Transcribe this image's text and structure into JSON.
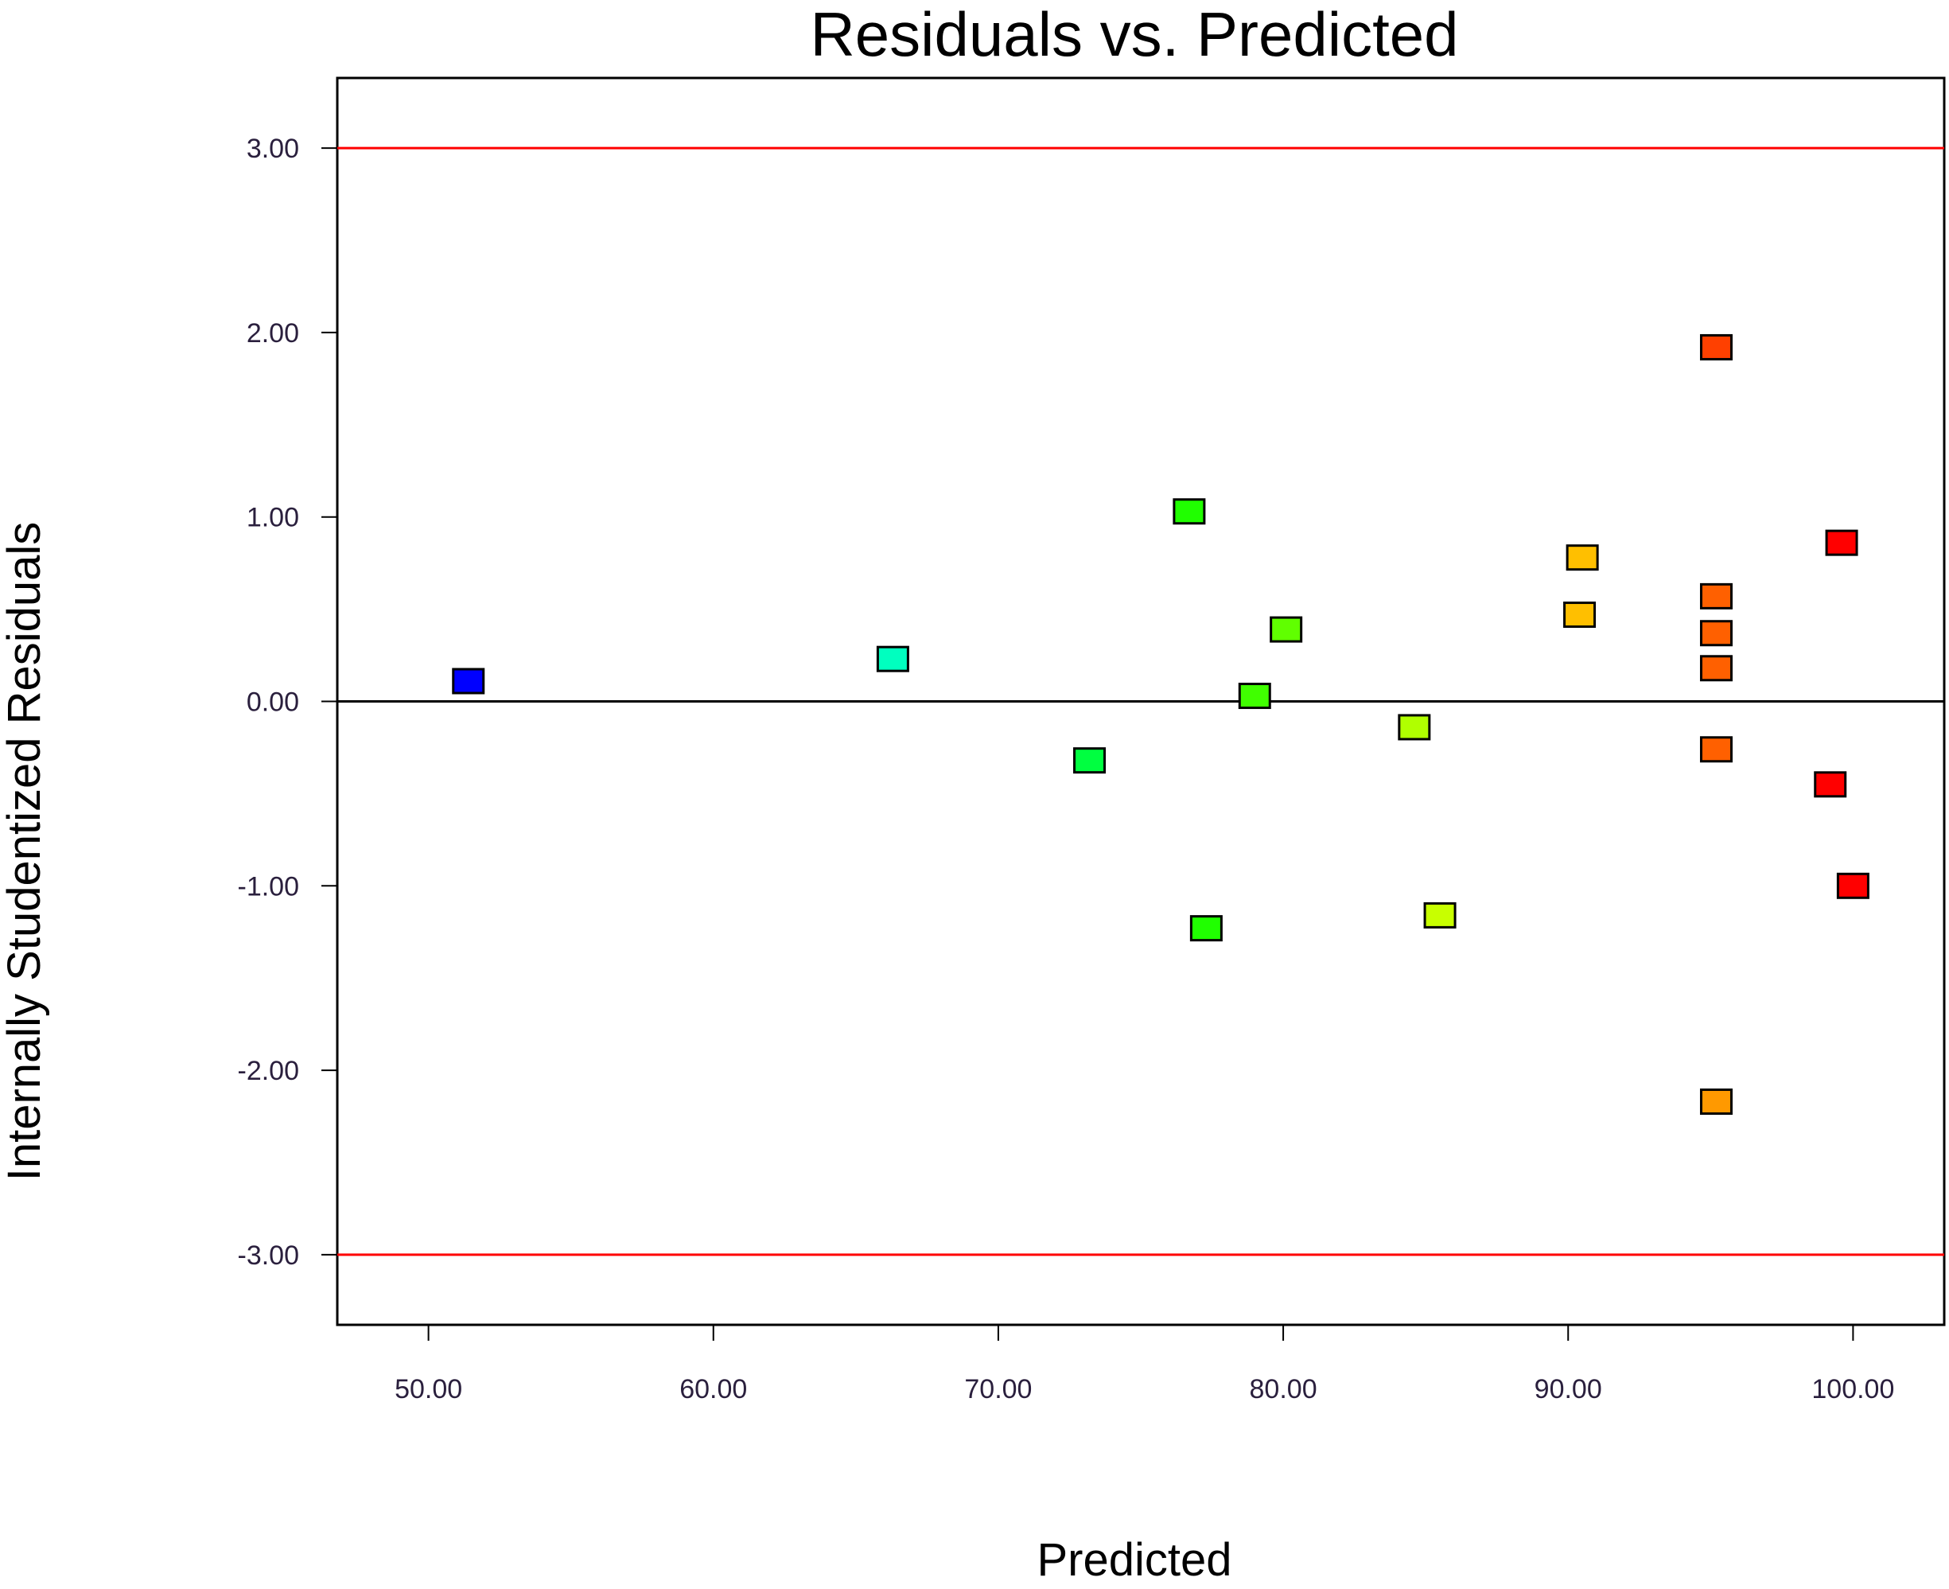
{
  "chart_data": {
    "type": "scatter",
    "title": "Residuals vs. Predicted",
    "xlabel": "Predicted",
    "ylabel": "Internally Studentized Residuals",
    "xlim": [
      46.8,
      103.2
    ],
    "ylim": [
      -3.38,
      3.38
    ],
    "x_ticks": [
      50,
      60,
      70,
      80,
      90,
      100
    ],
    "x_tick_labels": [
      "50.00",
      "60.00",
      "70.00",
      "80.00",
      "90.00",
      "100.00"
    ],
    "y_ticks": [
      3,
      2,
      1,
      0,
      -1,
      -2,
      -3
    ],
    "y_tick_labels": [
      "3.00",
      "2.00",
      "1.00",
      "0.00",
      "-1.00",
      "-2.00",
      "-3.00"
    ],
    "reference_lines": [
      {
        "y": 3,
        "color": "#ff0000"
      },
      {
        "y": 0,
        "color": "#000000"
      },
      {
        "y": -3,
        "color": "#ff0000"
      }
    ],
    "grid": false,
    "legend": "none",
    "points": [
      {
        "x": 51.4,
        "y": 0.11,
        "color": "#0000ff"
      },
      {
        "x": 66.3,
        "y": 0.23,
        "color": "#00ffbf"
      },
      {
        "x": 73.2,
        "y": -0.32,
        "color": "#00ff40"
      },
      {
        "x": 76.7,
        "y": 1.03,
        "color": "#20ff00"
      },
      {
        "x": 77.3,
        "y": -1.23,
        "color": "#20ff00"
      },
      {
        "x": 79.0,
        "y": 0.03,
        "color": "#40ff00"
      },
      {
        "x": 80.1,
        "y": 0.39,
        "color": "#60ff00"
      },
      {
        "x": 84.6,
        "y": -0.14,
        "color": "#b0ff00"
      },
      {
        "x": 85.5,
        "y": -1.16,
        "color": "#c8ff00"
      },
      {
        "x": 90.4,
        "y": 0.47,
        "color": "#ffbf00"
      },
      {
        "x": 90.5,
        "y": 0.78,
        "color": "#ffbf00"
      },
      {
        "x": 95.2,
        "y": 1.92,
        "color": "#ff4000"
      },
      {
        "x": 95.2,
        "y": 0.57,
        "color": "#ff6000"
      },
      {
        "x": 95.2,
        "y": 0.37,
        "color": "#ff6000"
      },
      {
        "x": 95.2,
        "y": 0.18,
        "color": "#ff6000"
      },
      {
        "x": 95.2,
        "y": -0.26,
        "color": "#ff6000"
      },
      {
        "x": 95.2,
        "y": -2.17,
        "color": "#ff9900"
      },
      {
        "x": 99.2,
        "y": -0.45,
        "color": "#ff0000"
      },
      {
        "x": 99.6,
        "y": 0.86,
        "color": "#ff0000"
      },
      {
        "x": 100.0,
        "y": -1.0,
        "color": "#ff0000"
      }
    ]
  }
}
